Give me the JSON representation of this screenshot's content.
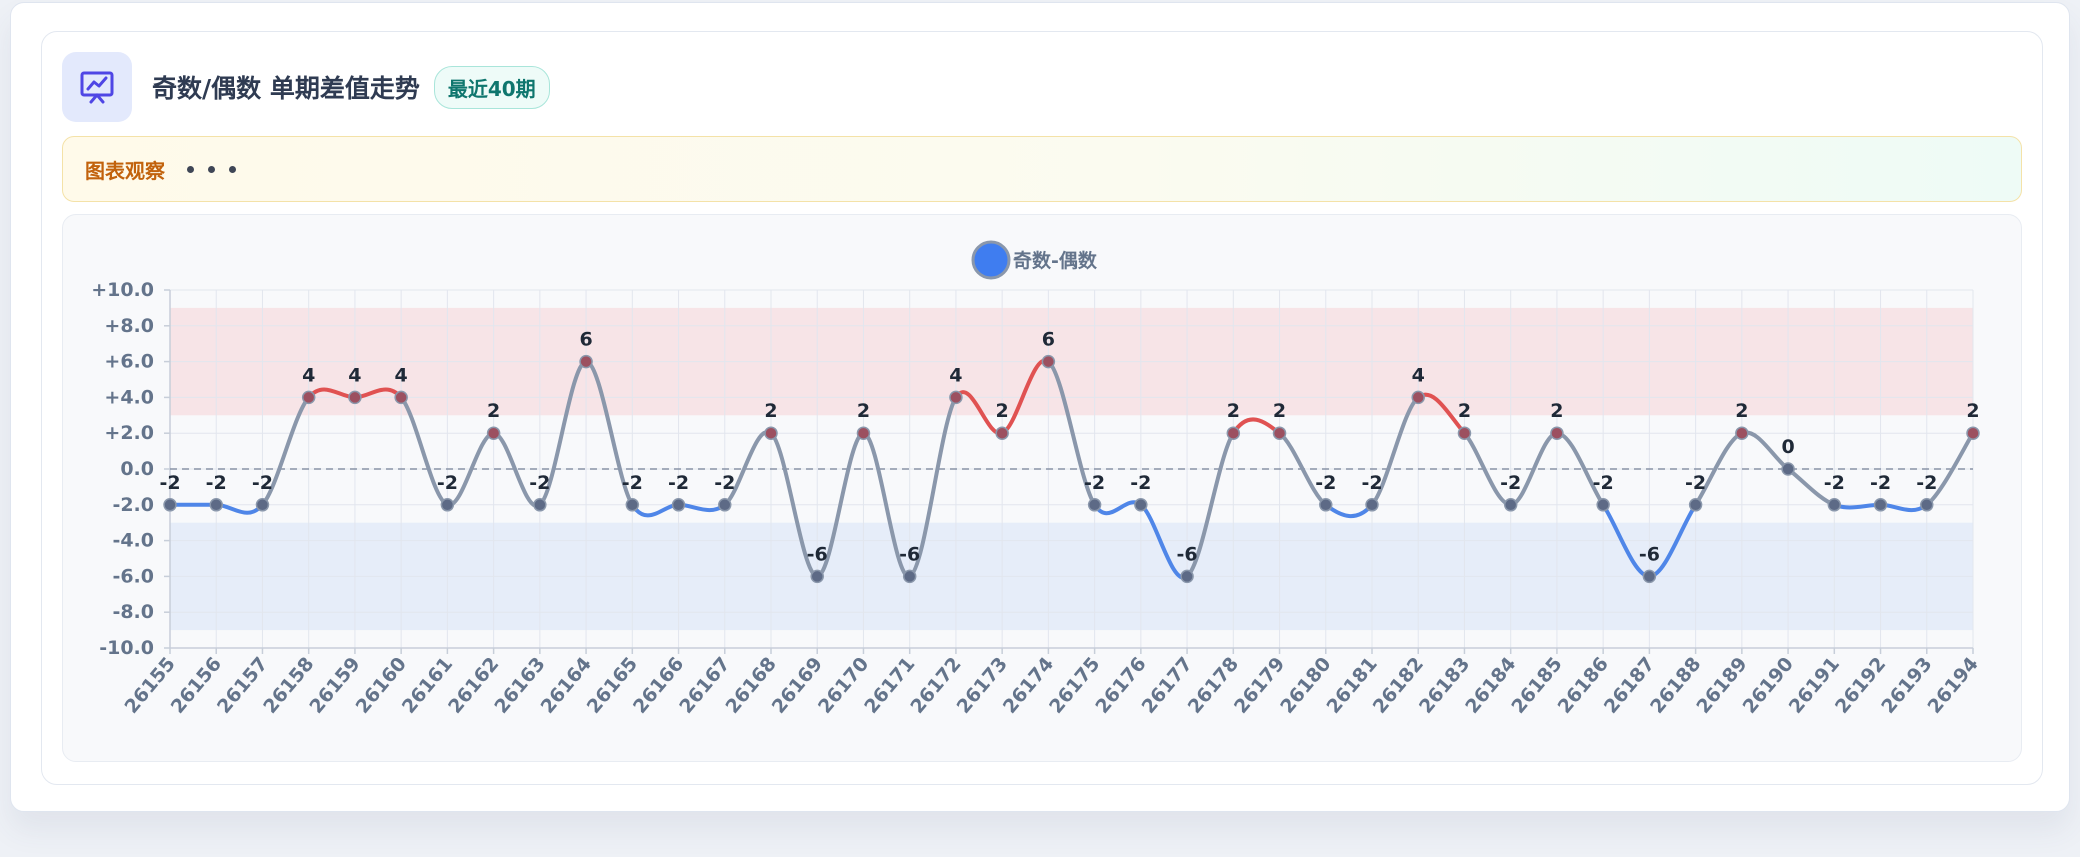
{
  "header": {
    "title": "奇数/偶数 单期差值走势",
    "badge": "最近40期"
  },
  "observation": {
    "label": "图表观察"
  },
  "colors": {
    "line_default": "#8a97ab",
    "line_positive": "#e05252",
    "line_negative": "#4f86e8",
    "band_high": "#f7e4e7",
    "band_low": "#e6edf9",
    "legend": "#3f7df0"
  },
  "chart_data": {
    "type": "line",
    "title": "",
    "legend": {
      "position": "top-center",
      "entries": [
        "奇数-偶数"
      ]
    },
    "x": [
      "26155",
      "26156",
      "26157",
      "26158",
      "26159",
      "26160",
      "26161",
      "26162",
      "26163",
      "26164",
      "26165",
      "26166",
      "26167",
      "26168",
      "26169",
      "26170",
      "26171",
      "26172",
      "26173",
      "26174",
      "26175",
      "26176",
      "26177",
      "26178",
      "26179",
      "26180",
      "26181",
      "26182",
      "26183",
      "26184",
      "26185",
      "26186",
      "26187",
      "26188",
      "26189",
      "26190",
      "26191",
      "26192",
      "26193",
      "26194"
    ],
    "series": [
      {
        "name": "奇数-偶数",
        "values": [
          -2,
          -2,
          -2,
          4,
          4,
          4,
          -2,
          2,
          -2,
          6,
          -2,
          -2,
          -2,
          2,
          -6,
          2,
          -6,
          4,
          2,
          6,
          -2,
          -2,
          -6,
          2,
          2,
          -2,
          -2,
          4,
          2,
          -2,
          2,
          -2,
          -6,
          -2,
          2,
          0,
          -2,
          -2,
          -2,
          2
        ]
      }
    ],
    "ylim": [
      -10,
      10
    ],
    "yticks": [
      "+10.0",
      "+8.0",
      "+6.0",
      "+4.0",
      "+2.0",
      "0.0",
      "-2.0",
      "-4.0",
      "-6.0",
      "-8.0",
      "-10.0"
    ],
    "bands": [
      {
        "from": 3,
        "to": 9
      },
      {
        "from": -9,
        "to": -3
      }
    ],
    "reference_line": 0,
    "grid": true
  }
}
